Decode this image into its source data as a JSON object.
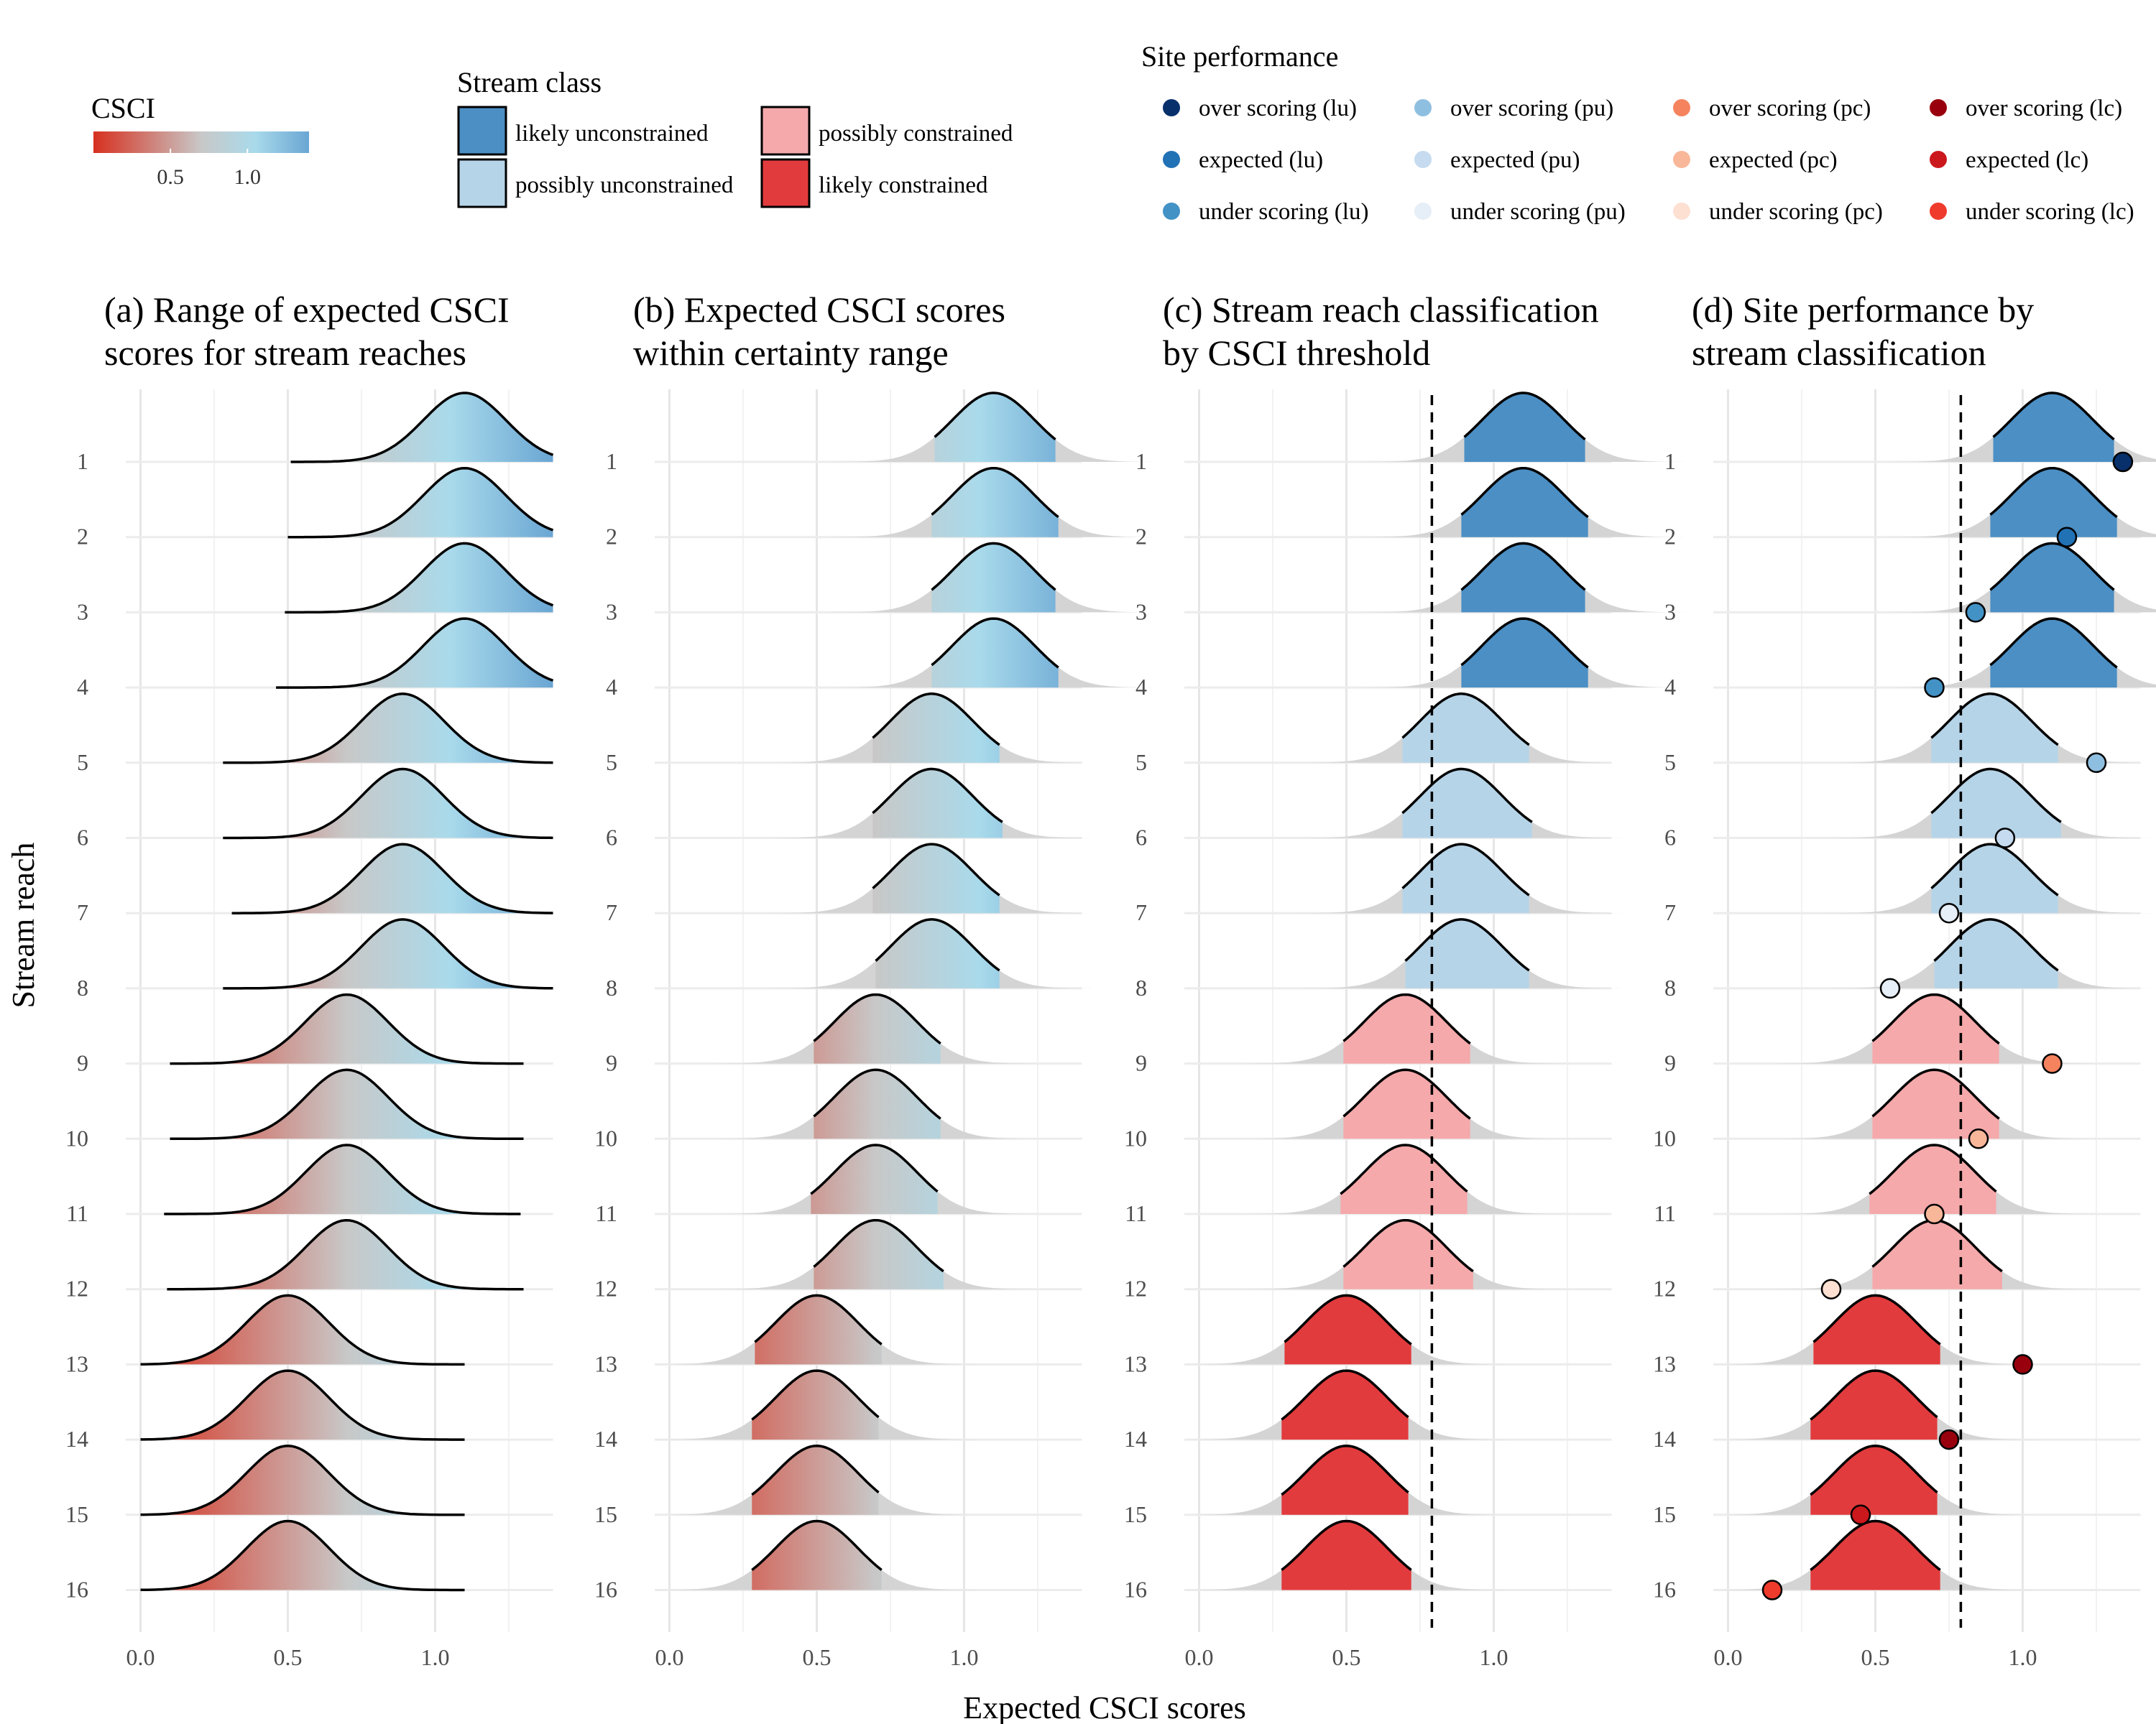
{
  "axis": {
    "xlabel": "Expected CSCI scores",
    "ylabel": "Stream reach",
    "xlim": [
      -0.05,
      1.4
    ],
    "x_ticks": [
      0.0,
      0.5,
      1.0
    ],
    "x_tick_labels": [
      "0.0",
      "0.5",
      "1.0"
    ],
    "minor_grid": [
      0.25,
      0.75,
      1.25
    ],
    "reach_labels": [
      "1",
      "2",
      "3",
      "4",
      "5",
      "6",
      "7",
      "8",
      "9",
      "10",
      "11",
      "12",
      "13",
      "14",
      "15",
      "16"
    ],
    "threshold": 0.79,
    "grid": true
  },
  "legends": {
    "csci": {
      "title": "CSCI",
      "tick_labels": [
        "0.5",
        "1.0"
      ],
      "tick_values": [
        0.5,
        1.0
      ],
      "range": [
        0.0,
        1.4
      ],
      "colors": [
        "#d7301f",
        "#c8c8c8",
        "#a9daeb",
        "#6aa6d3"
      ]
    },
    "stream_class": {
      "title": "Stream class",
      "items": [
        {
          "label": "likely unconstrained",
          "color": "#4b8fc4"
        },
        {
          "label": "possibly unconstrained",
          "color": "#b6d4e8"
        },
        {
          "label": "possibly constrained",
          "color": "#f5a9ab"
        },
        {
          "label": "likely constrained",
          "color": "#e23b3d"
        }
      ]
    },
    "site_performance": {
      "title": "Site performance",
      "items": [
        {
          "label": "over scoring (lu)",
          "color": "#08306b"
        },
        {
          "label": "expected (lu)",
          "color": "#2171b5"
        },
        {
          "label": "under scoring (lu)",
          "color": "#4292c6"
        },
        {
          "label": "over scoring (pu)",
          "color": "#8fbfe0"
        },
        {
          "label": "expected (pu)",
          "color": "#c6dbef"
        },
        {
          "label": "under scoring (pu)",
          "color": "#e6eef7"
        },
        {
          "label": "over scoring (pc)",
          "color": "#f4835e"
        },
        {
          "label": "expected (pc)",
          "color": "#f9b79a"
        },
        {
          "label": "under scoring (pc)",
          "color": "#fde0d2"
        },
        {
          "label": "over scoring (lc)",
          "color": "#99000d"
        },
        {
          "label": "expected (lc)",
          "color": "#cb181d"
        },
        {
          "label": "under scoring (lc)",
          "color": "#ef3b2c"
        }
      ]
    }
  },
  "panels": [
    {
      "title_lines": [
        "(a) Range of expected CSCI",
        "scores for stream reaches"
      ]
    },
    {
      "title_lines": [
        "(b) Expected CSCI scores",
        "within certainty range"
      ]
    },
    {
      "title_lines": [
        "(c) Stream reach classification",
        "by CSCI threshold"
      ]
    },
    {
      "title_lines": [
        "(d) Site performance by",
        "stream classification"
      ]
    }
  ],
  "chart_data": {
    "type": "density",
    "description_free": true,
    "reaches": [
      {
        "reach": 1,
        "class": "likely unconstrained",
        "mean": 1.1,
        "a_range": [
          0.51,
          1.4
        ],
        "b_range": [
          0.9,
          1.31
        ],
        "site": 1.34,
        "site_color": "#08306b"
      },
      {
        "reach": 2,
        "class": "likely unconstrained",
        "mean": 1.1,
        "a_range": [
          0.5,
          1.4
        ],
        "b_range": [
          0.89,
          1.32
        ],
        "site": 1.15,
        "site_color": "#2171b5"
      },
      {
        "reach": 3,
        "class": "likely unconstrained",
        "mean": 1.1,
        "a_range": [
          0.49,
          1.4
        ],
        "b_range": [
          0.89,
          1.31
        ],
        "site": 0.84,
        "site_color": "#4292c6"
      },
      {
        "reach": 4,
        "class": "likely unconstrained",
        "mean": 1.1,
        "a_range": [
          0.46,
          1.4
        ],
        "b_range": [
          0.89,
          1.32
        ],
        "site": 0.7,
        "site_color": "#4292c6"
      },
      {
        "reach": 5,
        "class": "possibly unconstrained",
        "mean": 0.89,
        "a_range": [
          0.28,
          1.4
        ],
        "b_range": [
          0.69,
          1.12
        ],
        "site": 1.25,
        "site_color": "#8fbfe0"
      },
      {
        "reach": 6,
        "class": "possibly unconstrained",
        "mean": 0.89,
        "a_range": [
          0.28,
          1.4
        ],
        "b_range": [
          0.69,
          1.13
        ],
        "site": 0.94,
        "site_color": "#c6dbef"
      },
      {
        "reach": 7,
        "class": "possibly unconstrained",
        "mean": 0.89,
        "a_range": [
          0.31,
          1.4
        ],
        "b_range": [
          0.69,
          1.12
        ],
        "site": 0.75,
        "site_color": "#e6eef7"
      },
      {
        "reach": 8,
        "class": "possibly unconstrained",
        "mean": 0.89,
        "a_range": [
          0.28,
          1.4
        ],
        "b_range": [
          0.7,
          1.12
        ],
        "site": 0.55,
        "site_color": "#e6eef7"
      },
      {
        "reach": 9,
        "class": "possibly constrained",
        "mean": 0.7,
        "a_range": [
          0.1,
          1.3
        ],
        "b_range": [
          0.49,
          0.92
        ],
        "site": 1.1,
        "site_color": "#f4835e"
      },
      {
        "reach": 10,
        "class": "possibly constrained",
        "mean": 0.7,
        "a_range": [
          0.1,
          1.3
        ],
        "b_range": [
          0.49,
          0.92
        ],
        "site": 0.85,
        "site_color": "#f9b79a"
      },
      {
        "reach": 11,
        "class": "possibly constrained",
        "mean": 0.7,
        "a_range": [
          0.08,
          1.29
        ],
        "b_range": [
          0.48,
          0.91
        ],
        "site": 0.7,
        "site_color": "#f9b79a"
      },
      {
        "reach": 12,
        "class": "possibly constrained",
        "mean": 0.7,
        "a_range": [
          0.09,
          1.3
        ],
        "b_range": [
          0.49,
          0.93
        ],
        "site": 0.35,
        "site_color": "#fde0d2"
      },
      {
        "reach": 13,
        "class": "likely constrained",
        "mean": 0.5,
        "a_range": [
          0.0,
          1.1
        ],
        "b_range": [
          0.29,
          0.72
        ],
        "site": 1.0,
        "site_color": "#99000d"
      },
      {
        "reach": 14,
        "class": "likely constrained",
        "mean": 0.5,
        "a_range": [
          0.0,
          1.1
        ],
        "b_range": [
          0.28,
          0.71
        ],
        "site": 0.75,
        "site_color": "#99000d"
      },
      {
        "reach": 15,
        "class": "likely constrained",
        "mean": 0.5,
        "a_range": [
          0.0,
          1.1
        ],
        "b_range": [
          0.28,
          0.71
        ],
        "site": 0.45,
        "site_color": "#cb181d"
      },
      {
        "reach": 16,
        "class": "likely constrained",
        "mean": 0.5,
        "a_range": [
          0.0,
          1.1
        ],
        "b_range": [
          0.28,
          0.72
        ],
        "site": 0.15,
        "site_color": "#ef3b2c"
      }
    ]
  }
}
